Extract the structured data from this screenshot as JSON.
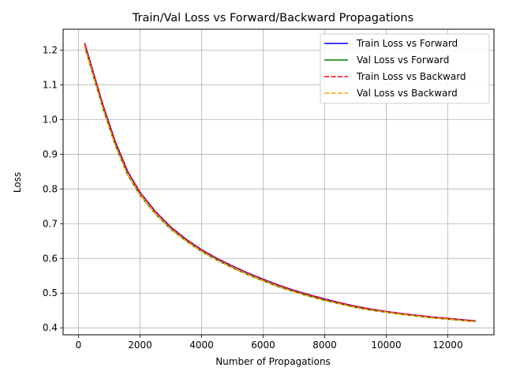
{
  "chart_data": {
    "type": "line",
    "title": "Train/Val Loss vs Forward/Backward Propagations",
    "xlabel": "Number of Propagations",
    "ylabel": "Loss",
    "xlim": [
      -500,
      13500
    ],
    "ylim": [
      0.38,
      1.26
    ],
    "xticks": [
      0,
      2000,
      4000,
      6000,
      8000,
      10000,
      12000
    ],
    "yticks": [
      0.4,
      0.5,
      0.6,
      0.7,
      0.8,
      0.9,
      1.0,
      1.1,
      1.2
    ],
    "grid": true,
    "legend_position": "top-right",
    "series": [
      {
        "name": "Train Loss vs Forward",
        "color": "#0000ff",
        "dash": "solid",
        "x": [
          200,
          500,
          800,
          1200,
          1600,
          2000,
          2500,
          3000,
          3500,
          4000,
          4500,
          5000,
          5500,
          6000,
          6500,
          7000,
          7500,
          8000,
          8500,
          9000,
          9500,
          10000,
          10500,
          11000,
          11500,
          12000,
          12500,
          12900
        ],
        "y": [
          1.22,
          1.13,
          1.04,
          0.935,
          0.85,
          0.79,
          0.735,
          0.69,
          0.655,
          0.625,
          0.6,
          0.578,
          0.558,
          0.54,
          0.523,
          0.508,
          0.495,
          0.483,
          0.472,
          0.462,
          0.454,
          0.447,
          0.441,
          0.436,
          0.431,
          0.427,
          0.423,
          0.42
        ]
      },
      {
        "name": "Val Loss vs Forward",
        "color": "#008000",
        "dash": "solid",
        "x": [
          200,
          500,
          800,
          1200,
          1600,
          2000,
          2500,
          3000,
          3500,
          4000,
          4500,
          5000,
          5500,
          6000,
          6500,
          7000,
          7500,
          8000,
          8500,
          9000,
          9500,
          10000,
          10500,
          11000,
          11500,
          12000,
          12500,
          12900
        ],
        "y": [
          1.21,
          1.12,
          1.03,
          0.925,
          0.84,
          0.782,
          0.728,
          0.684,
          0.65,
          0.62,
          0.595,
          0.573,
          0.553,
          0.535,
          0.518,
          0.504,
          0.491,
          0.479,
          0.469,
          0.459,
          0.451,
          0.445,
          0.439,
          0.434,
          0.429,
          0.425,
          0.421,
          0.418
        ]
      },
      {
        "name": "Train Loss vs Backward",
        "color": "#ff0000",
        "dash": "dashed",
        "x": [
          200,
          500,
          800,
          1200,
          1600,
          2000,
          2500,
          3000,
          3500,
          4000,
          4500,
          5000,
          5500,
          6000,
          6500,
          7000,
          7500,
          8000,
          8500,
          9000,
          9500,
          10000,
          10500,
          11000,
          11500,
          12000,
          12500,
          12900
        ],
        "y": [
          1.22,
          1.13,
          1.04,
          0.935,
          0.85,
          0.79,
          0.735,
          0.69,
          0.655,
          0.625,
          0.6,
          0.578,
          0.558,
          0.54,
          0.523,
          0.508,
          0.495,
          0.483,
          0.472,
          0.462,
          0.454,
          0.447,
          0.441,
          0.436,
          0.431,
          0.427,
          0.423,
          0.42
        ]
      },
      {
        "name": "Val Loss vs Backward",
        "color": "#ffa500",
        "dash": "dashed",
        "x": [
          200,
          500,
          800,
          1200,
          1600,
          2000,
          2500,
          3000,
          3500,
          4000,
          4500,
          5000,
          5500,
          6000,
          6500,
          7000,
          7500,
          8000,
          8500,
          9000,
          9500,
          10000,
          10500,
          11000,
          11500,
          12000,
          12500,
          12900
        ],
        "y": [
          1.21,
          1.12,
          1.03,
          0.925,
          0.84,
          0.782,
          0.728,
          0.684,
          0.65,
          0.62,
          0.595,
          0.573,
          0.553,
          0.535,
          0.518,
          0.504,
          0.491,
          0.479,
          0.469,
          0.459,
          0.451,
          0.445,
          0.439,
          0.434,
          0.429,
          0.425,
          0.421,
          0.418
        ]
      }
    ]
  }
}
